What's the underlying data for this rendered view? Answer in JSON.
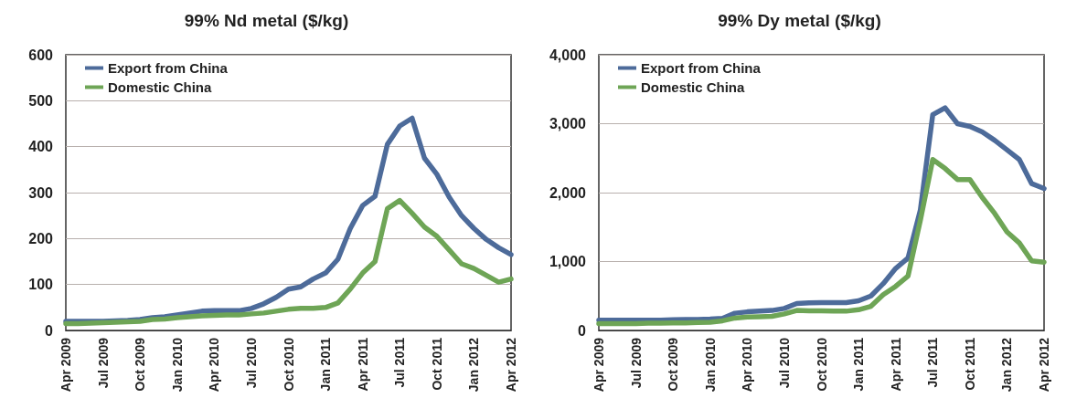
{
  "chart_data": [
    {
      "type": "line",
      "title": "99% Nd metal ($/kg)",
      "categories": [
        "Apr 2009",
        null,
        null,
        "Jul 2009",
        null,
        null,
        "Oct 2009",
        null,
        null,
        "Jan 2010",
        null,
        null,
        "Apr 2010",
        null,
        null,
        "Jul 2010",
        null,
        null,
        "Oct 2010",
        null,
        null,
        "Jan 2011",
        null,
        null,
        "Apr 2011",
        null,
        null,
        "Jul 2011",
        null,
        null,
        "Oct 2011",
        null,
        null,
        "Jan 2012",
        null,
        null,
        "Apr 2012"
      ],
      "series": [
        {
          "name": "Export from China",
          "color": "#4d6b9a",
          "values": [
            20,
            20,
            20,
            20,
            21,
            22,
            24,
            28,
            30,
            34,
            38,
            42,
            43,
            43,
            43,
            48,
            58,
            72,
            90,
            95,
            112,
            125,
            155,
            222,
            272,
            292,
            405,
            445,
            462,
            375,
            340,
            290,
            250,
            222,
            198,
            180,
            165
          ]
        },
        {
          "name": "Domestic China",
          "color": "#6ea556",
          "values": [
            15,
            15,
            16,
            17,
            18,
            19,
            20,
            24,
            25,
            28,
            30,
            32,
            33,
            34,
            34,
            36,
            38,
            42,
            46,
            48,
            48,
            50,
            60,
            90,
            125,
            150,
            265,
            283,
            255,
            225,
            205,
            175,
            145,
            135,
            120,
            105,
            112
          ]
        }
      ],
      "ylim": [
        0,
        600
      ],
      "yticks": [
        0,
        100,
        200,
        300,
        400,
        500,
        600
      ],
      "grid": "y",
      "legend": "top left",
      "marker": "none",
      "line_style": "solid"
    },
    {
      "type": "line",
      "title": "99% Dy metal ($/kg)",
      "categories": [
        "Apr 2009",
        null,
        null,
        "Jul 2009",
        null,
        null,
        "Oct 2009",
        null,
        null,
        "Jan 2010",
        null,
        null,
        "Apr 2010",
        null,
        null,
        "Jul 2010",
        null,
        null,
        "Oct 2010",
        null,
        null,
        "Jan 2011",
        null,
        null,
        "Apr 2011",
        null,
        null,
        "Jul 2011",
        null,
        null,
        "Oct 2011",
        null,
        null,
        "Jan 2012",
        null,
        null,
        "Apr 2012"
      ],
      "series": [
        {
          "name": "Export from China",
          "color": "#4d6b9a",
          "values": [
            150,
            150,
            150,
            150,
            150,
            150,
            155,
            160,
            160,
            165,
            175,
            250,
            270,
            280,
            290,
            320,
            390,
            400,
            405,
            405,
            405,
            430,
            500,
            680,
            900,
            1050,
            1750,
            3130,
            3230,
            3000,
            2960,
            2880,
            2760,
            2620,
            2480,
            2130,
            2060
          ]
        },
        {
          "name": "Domestic China",
          "color": "#6ea556",
          "values": [
            100,
            100,
            100,
            100,
            105,
            105,
            110,
            110,
            115,
            120,
            140,
            180,
            195,
            200,
            205,
            240,
            290,
            285,
            285,
            280,
            280,
            300,
            350,
            520,
            640,
            790,
            1600,
            2480,
            2350,
            2190,
            2190,
            1930,
            1700,
            1430,
            1270,
            1010,
            990
          ]
        }
      ],
      "ylim": [
        0,
        4000
      ],
      "yticks": [
        0,
        {
          "value": 1000,
          "label": "1,000"
        },
        {
          "value": 2000,
          "label": "2,000"
        },
        {
          "value": 3000,
          "label": "3,000"
        },
        {
          "value": 4000,
          "label": "4,000"
        }
      ],
      "grid": "y",
      "legend": "top left",
      "marker": "none",
      "line_style": "solid"
    }
  ]
}
